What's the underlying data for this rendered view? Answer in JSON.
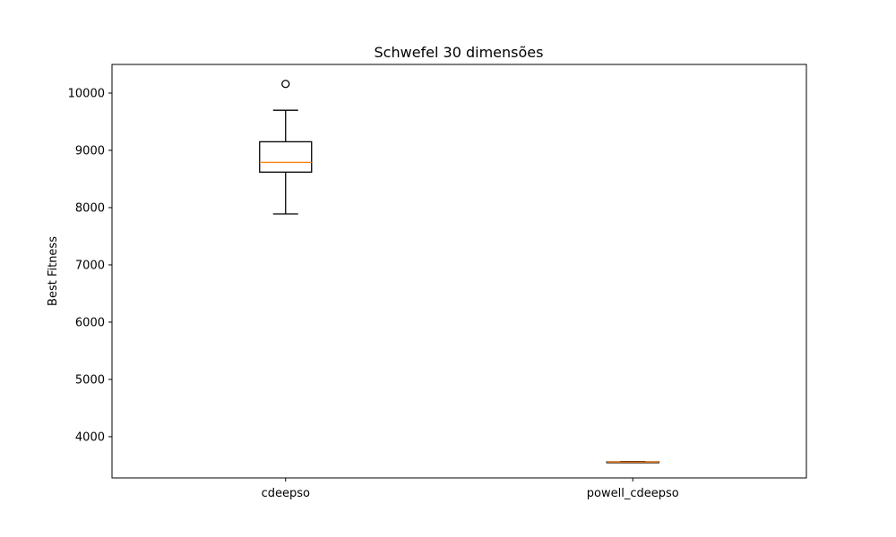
{
  "chart_data": {
    "type": "box",
    "title": "Schwefel 30 dimensões",
    "xlabel": "",
    "ylabel": "Best Fitness",
    "ylim": [
      3280,
      10500
    ],
    "yticks": [
      4000,
      5000,
      6000,
      7000,
      8000,
      9000,
      10000
    ],
    "grid": false,
    "categories": [
      "cdeepso",
      "powell_cdeepso"
    ],
    "boxes": [
      {
        "category": "cdeepso",
        "whisker_low": 7890,
        "q1": 8620,
        "median": 8790,
        "q3": 9150,
        "whisker_high": 9700,
        "outliers": [
          10160
        ]
      },
      {
        "category": "powell_cdeepso",
        "whisker_low": 3550,
        "q1": 3555,
        "median": 3558,
        "q3": 3562,
        "whisker_high": 3566,
        "outliers": []
      }
    ],
    "colors": {
      "box": "#000000",
      "median": "#ff7f0e",
      "background": "#ffffff"
    }
  }
}
